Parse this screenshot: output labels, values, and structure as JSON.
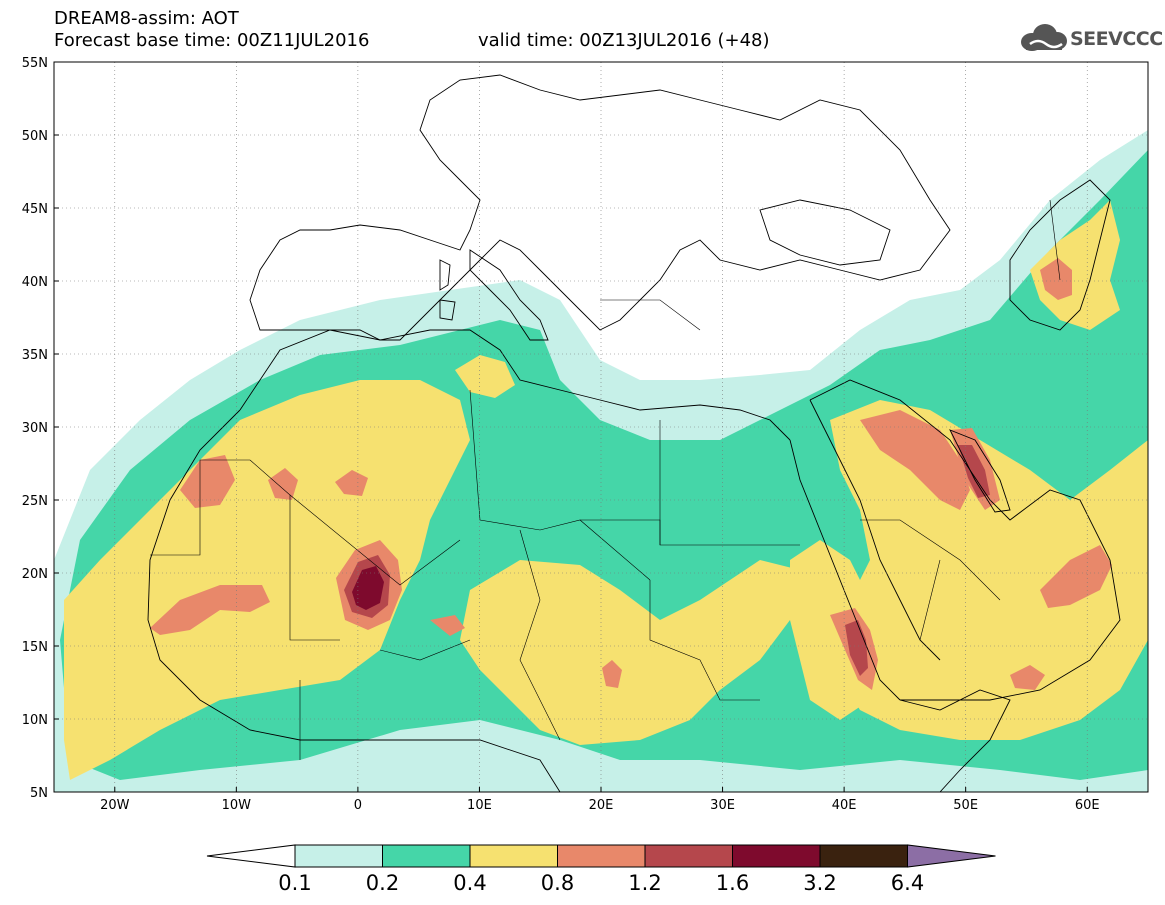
{
  "header": {
    "title": "DREAM8-assim: AOT",
    "base_time": "Forecast base time: 00Z11JUL2016",
    "valid_time": "valid time: 00Z13JUL2016 (+48)",
    "logo_text": "SEEVCCC",
    "logo_icon": "cloud-icon"
  },
  "map": {
    "lon_range": [
      -25,
      65
    ],
    "lat_range": [
      5,
      55
    ],
    "lat_labels": [
      "55N",
      "50N",
      "45N",
      "40N",
      "35N",
      "30N",
      "25N",
      "20N",
      "15N",
      "10N",
      "5N"
    ],
    "lon_labels": [
      "20W",
      "10W",
      "0",
      "10E",
      "20E",
      "30E",
      "40E",
      "50E",
      "60E"
    ]
  },
  "colorbar": {
    "levels": [
      "0.1",
      "0.2",
      "0.4",
      "0.8",
      "1.2",
      "1.6",
      "3.2",
      "6.4"
    ],
    "colors": [
      "#ffffff",
      "#c6f0e8",
      "#45d6a8",
      "#f6e170",
      "#e8886a",
      "#b5474c",
      "#7e0a2d",
      "#3a220f",
      "#8c6ea5"
    ]
  },
  "colors": {
    "c1": "#c6f0e8",
    "c2": "#45d6a8",
    "c3": "#f6e170",
    "c4": "#e8886a",
    "c5": "#b5474c",
    "c6": "#7e0a2d"
  }
}
